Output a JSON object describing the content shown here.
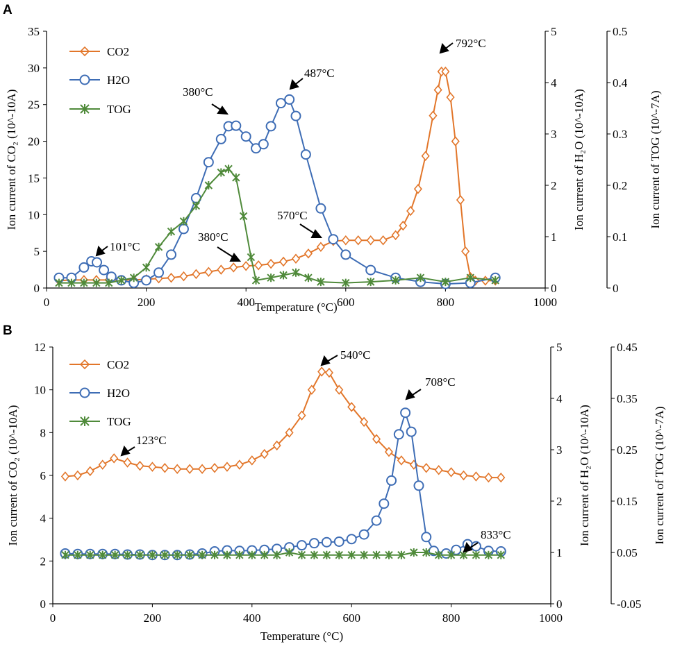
{
  "panels": [
    {
      "letter": "A",
      "xlabel": "Temperature (°C)",
      "y1label": "Ion current of CO₂  (10^-10A)",
      "y2label": "Ion current of  H₂O (10^-10A)",
      "y3label": "Ion current of TOG (10^-7A)",
      "xlim": [
        0,
        1000
      ],
      "xticks": [
        "0",
        "200",
        "400",
        "600",
        "800",
        "1000"
      ],
      "y1lim": [
        0,
        35
      ],
      "y1ticks": [
        "0",
        "5",
        "10",
        "15",
        "20",
        "25",
        "30",
        "35"
      ],
      "y2lim": [
        0,
        5
      ],
      "y2ticks": [
        "0",
        "1",
        "2",
        "3",
        "4",
        "5"
      ],
      "y3lim": [
        0,
        0.5
      ],
      "y3ticks": [
        "0",
        "0.1",
        "0.2",
        "0.3",
        "0.4",
        "0.5"
      ],
      "legend": [
        "CO2",
        "H2O",
        "TOG"
      ],
      "annotations": [
        "792°C",
        "487°C",
        "380°C",
        "101°C",
        "380°C",
        "570°C"
      ]
    },
    {
      "letter": "B",
      "xlabel": "Temperature (°C)",
      "y1label": "Ion current of CO₂  (10^-10A)",
      "y2label": "Ion current of  H₂O (10^-10A)",
      "y3label": "Ion current of TOG (10^-7A)",
      "xlim": [
        0,
        1000
      ],
      "xticks": [
        "0",
        "200",
        "400",
        "600",
        "800",
        "1000"
      ],
      "y1lim": [
        0,
        12
      ],
      "y1ticks": [
        "0",
        "2",
        "4",
        "6",
        "8",
        "10",
        "12"
      ],
      "y2lim": [
        0,
        5
      ],
      "y2ticks": [
        "0",
        "1",
        "2",
        "3",
        "4",
        "5"
      ],
      "y3lim": [
        -0.05,
        0.45
      ],
      "y3ticks": [
        "-0.05",
        "0.05",
        "0.15",
        "0.25",
        "0.35",
        "0.45"
      ],
      "legend": [
        "CO2",
        "H2O",
        "TOG"
      ],
      "annotations": [
        "540°C",
        "708°C",
        "123°C",
        "833°C"
      ]
    }
  ],
  "colors": {
    "CO2": "#e2762a",
    "H2O": "#3e6db5",
    "TOG": "#4f8a3a"
  },
  "chart_data": [
    {
      "type": "line",
      "title": "A",
      "xlabel": "Temperature (°C)",
      "series": [
        {
          "name": "CO2",
          "axis": "left",
          "marker": "diamond",
          "x": [
            25,
            50,
            75,
            100,
            125,
            150,
            175,
            200,
            225,
            250,
            275,
            300,
            325,
            350,
            375,
            400,
            425,
            450,
            475,
            500,
            525,
            550,
            575,
            600,
            625,
            650,
            675,
            700,
            715,
            730,
            745,
            760,
            775,
            785,
            792,
            800,
            810,
            820,
            830,
            840,
            850,
            860,
            880,
            900
          ],
          "y": [
            1.0,
            1.1,
            1.1,
            1.1,
            1.1,
            1.1,
            1.1,
            1.2,
            1.3,
            1.4,
            1.6,
            1.9,
            2.2,
            2.5,
            2.8,
            3.0,
            3.1,
            3.3,
            3.6,
            4.0,
            4.7,
            5.6,
            6.4,
            6.5,
            6.5,
            6.5,
            6.5,
            7.2,
            8.5,
            10.5,
            13.5,
            18,
            23.5,
            27,
            29.5,
            29.5,
            26,
            20,
            12,
            5,
            1.5,
            1.0,
            1.0,
            1.0
          ]
        },
        {
          "name": "H2O",
          "axis": "right",
          "marker": "circle",
          "x": [
            25,
            50,
            75,
            90,
            101,
            115,
            130,
            150,
            175,
            200,
            225,
            250,
            275,
            300,
            325,
            350,
            365,
            380,
            400,
            420,
            435,
            450,
            470,
            487,
            500,
            520,
            550,
            575,
            600,
            650,
            700,
            750,
            800,
            850,
            900
          ],
          "y": [
            0.2,
            0.2,
            0.4,
            0.52,
            0.5,
            0.35,
            0.22,
            0.15,
            0.1,
            0.15,
            0.3,
            0.65,
            1.15,
            1.75,
            2.45,
            2.9,
            3.15,
            3.16,
            2.95,
            2.72,
            2.8,
            3.15,
            3.6,
            3.67,
            3.35,
            2.6,
            1.55,
            0.95,
            0.65,
            0.35,
            0.2,
            0.12,
            0.08,
            0.1,
            0.2
          ]
        },
        {
          "name": "TOG",
          "axis": "right2",
          "marker": "x",
          "x": [
            25,
            50,
            75,
            100,
            125,
            150,
            175,
            200,
            225,
            250,
            275,
            300,
            325,
            350,
            365,
            380,
            395,
            410,
            420,
            450,
            475,
            500,
            525,
            550,
            600,
            650,
            700,
            750,
            800,
            850,
            900
          ],
          "y": [
            0.01,
            0.01,
            0.01,
            0.01,
            0.01,
            0.015,
            0.02,
            0.04,
            0.08,
            0.11,
            0.13,
            0.16,
            0.2,
            0.225,
            0.232,
            0.215,
            0.14,
            0.06,
            0.015,
            0.02,
            0.025,
            0.03,
            0.02,
            0.012,
            0.01,
            0.012,
            0.015,
            0.02,
            0.012,
            0.02,
            0.015
          ]
        }
      ],
      "xlim": [
        0,
        1000
      ],
      "y_left": {
        "label": "Ion current of CO2 (10^-10A)",
        "lim": [
          0,
          35
        ]
      },
      "y_right": {
        "label": "Ion current of H2O (10^-10A)",
        "lim": [
          0,
          5
        ]
      },
      "y_right2": {
        "label": "Ion current of TOG (10^-7A)",
        "lim": [
          0,
          0.5
        ]
      },
      "annotations": [
        {
          "text": "792°C",
          "series": "CO2",
          "x": 792
        },
        {
          "text": "487°C",
          "series": "H2O",
          "x": 487
        },
        {
          "text": "380°C",
          "series": "H2O",
          "x": 380
        },
        {
          "text": "101°C",
          "series": "H2O",
          "x": 101
        },
        {
          "text": "380°C",
          "series": "CO2",
          "x": 380
        },
        {
          "text": "570°C",
          "series": "CO2",
          "x": 570
        }
      ]
    },
    {
      "type": "line",
      "title": "B",
      "xlabel": "Temperature (°C)",
      "series": [
        {
          "name": "CO2",
          "axis": "left",
          "marker": "diamond",
          "x": [
            25,
            50,
            75,
            100,
            123,
            150,
            175,
            200,
            225,
            250,
            275,
            300,
            325,
            350,
            375,
            400,
            425,
            450,
            475,
            500,
            520,
            540,
            555,
            575,
            600,
            625,
            650,
            675,
            700,
            725,
            750,
            775,
            800,
            825,
            850,
            875,
            900
          ],
          "y": [
            5.95,
            6.0,
            6.2,
            6.5,
            6.8,
            6.6,
            6.45,
            6.4,
            6.35,
            6.3,
            6.3,
            6.3,
            6.35,
            6.4,
            6.5,
            6.7,
            7.0,
            7.4,
            8.0,
            8.8,
            10.0,
            10.85,
            10.8,
            10.0,
            9.2,
            8.5,
            7.7,
            7.1,
            6.7,
            6.5,
            6.35,
            6.25,
            6.15,
            6.0,
            5.95,
            5.9,
            5.9
          ]
        },
        {
          "name": "H2O",
          "axis": "right",
          "marker": "circle",
          "x": [
            25,
            50,
            75,
            100,
            125,
            150,
            175,
            200,
            225,
            250,
            275,
            300,
            325,
            350,
            375,
            400,
            425,
            450,
            475,
            500,
            525,
            550,
            575,
            600,
            625,
            650,
            665,
            680,
            695,
            708,
            720,
            735,
            750,
            765,
            790,
            810,
            833,
            850,
            875,
            900
          ],
          "y": [
            0.98,
            0.97,
            0.97,
            0.97,
            0.97,
            0.96,
            0.96,
            0.95,
            0.95,
            0.95,
            0.96,
            0.98,
            1.02,
            1.04,
            1.03,
            1.04,
            1.05,
            1.07,
            1.1,
            1.14,
            1.18,
            1.2,
            1.21,
            1.26,
            1.35,
            1.62,
            1.95,
            2.4,
            3.3,
            3.72,
            3.35,
            2.3,
            1.3,
            1.03,
            0.98,
            1.05,
            1.16,
            1.12,
            1.03,
            1.02
          ]
        },
        {
          "name": "TOG",
          "axis": "right2",
          "marker": "x",
          "x": [
            25,
            50,
            75,
            100,
            125,
            150,
            175,
            200,
            225,
            250,
            275,
            300,
            325,
            350,
            375,
            400,
            425,
            450,
            475,
            500,
            525,
            550,
            575,
            600,
            625,
            650,
            675,
            700,
            725,
            750,
            775,
            800,
            825,
            850,
            875,
            900
          ],
          "y": [
            0.045,
            0.045,
            0.045,
            0.045,
            0.045,
            0.045,
            0.045,
            0.045,
            0.045,
            0.045,
            0.045,
            0.045,
            0.045,
            0.045,
            0.045,
            0.045,
            0.045,
            0.045,
            0.05,
            0.045,
            0.045,
            0.045,
            0.045,
            0.045,
            0.045,
            0.045,
            0.045,
            0.045,
            0.05,
            0.05,
            0.045,
            0.045,
            0.045,
            0.045,
            0.045,
            0.045
          ]
        }
      ],
      "xlim": [
        0,
        1000
      ],
      "y_left": {
        "label": "Ion current of CO2 (10^-10A)",
        "lim": [
          0,
          12
        ]
      },
      "y_right": {
        "label": "Ion current of H2O (10^-10A)",
        "lim": [
          0,
          5
        ]
      },
      "y_right2": {
        "label": "Ion current of TOG (10^-7A)",
        "lim": [
          -0.05,
          0.45
        ]
      },
      "annotations": [
        {
          "text": "540°C",
          "series": "CO2",
          "x": 540
        },
        {
          "text": "708°C",
          "series": "H2O",
          "x": 708
        },
        {
          "text": "123°C",
          "series": "CO2",
          "x": 123
        },
        {
          "text": "833°C",
          "series": "H2O",
          "x": 833
        }
      ]
    }
  ]
}
